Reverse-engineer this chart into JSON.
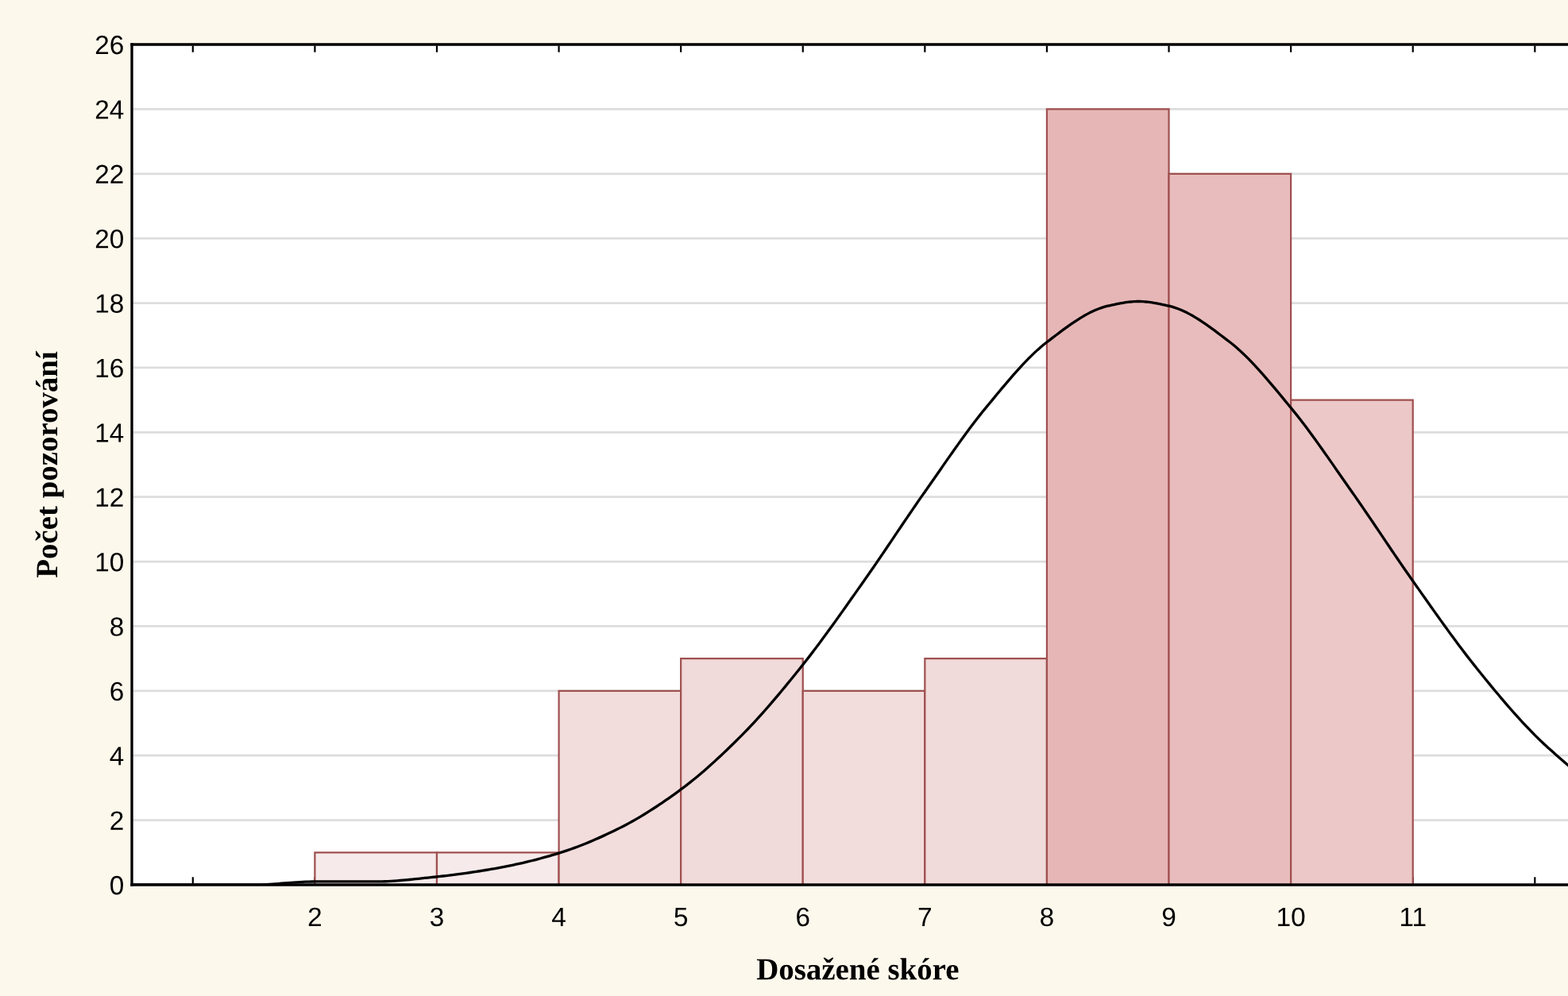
{
  "chart_data": {
    "type": "histogram",
    "xlabel": "Dosažené skóre",
    "ylabel": "Počet pozorování",
    "bins": [
      2,
      3,
      4,
      5,
      6,
      7,
      8,
      9,
      10,
      11
    ],
    "values": [
      1,
      1,
      6,
      7,
      6,
      7,
      24,
      22,
      15
    ],
    "colors": [
      "#f6eaea",
      "#f6eaea",
      "#f2dcdc",
      "#f1dada",
      "#f2dcdc",
      "#f1dada",
      "#e6b6b6",
      "#e8bcbc",
      "#ecc8c8"
    ],
    "series": [
      {
        "type": "line",
        "color": "#000000",
        "x": [
          0.5,
          1.5,
          2,
          2.5,
          3,
          3.5,
          4,
          4.5,
          5,
          5.5,
          6,
          6.5,
          7,
          7.5,
          8,
          8.5,
          8.75,
          9,
          9.5,
          10,
          10.5,
          11,
          11.5,
          12,
          12.3
        ],
        "values": [
          0,
          0,
          0.1,
          0.1,
          0.25,
          0.52,
          0.98,
          1.76,
          2.95,
          4.63,
          6.81,
          9.4,
          12.16,
          14.76,
          16.79,
          17.91,
          18.05,
          17.91,
          16.79,
          14.76,
          12.16,
          9.4,
          6.81,
          4.63,
          3.6
        ]
      }
    ],
    "xlim": [
      0.5,
      12.4
    ],
    "xticks": [
      {
        "value": 1,
        "label": null
      },
      2,
      3,
      4,
      5,
      6,
      7,
      8,
      9,
      10,
      11,
      {
        "value": 12,
        "label": null
      }
    ],
    "ylim": [
      0,
      26
    ],
    "yticks": [
      0,
      2,
      4,
      6,
      8,
      10,
      12,
      14,
      16,
      18,
      20,
      22,
      24,
      26
    ],
    "grid": "y"
  }
}
